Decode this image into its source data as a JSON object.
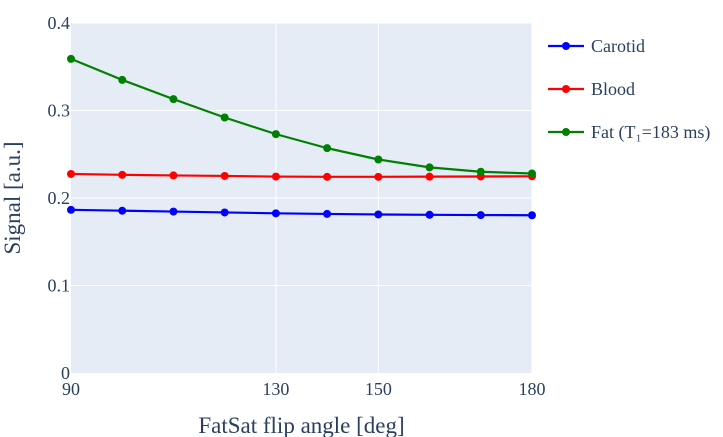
{
  "chart_data": {
    "type": "line",
    "xlabel": "FatSat flip angle [deg]",
    "ylabel": "Signal [a.u.]",
    "xlim": [
      90,
      180
    ],
    "ylim": [
      0,
      0.4
    ],
    "xticks": [
      90,
      130,
      150,
      180
    ],
    "yticks": [
      0,
      0.1,
      0.2,
      0.3,
      0.4
    ],
    "ytick_labels": [
      "0",
      "0.1",
      "0.2",
      "0.3",
      "0.4"
    ],
    "legend_position": "top-right, outside plot",
    "background": "#e5ecf6",
    "grid": true,
    "x": [
      90,
      100,
      110,
      120,
      130,
      140,
      150,
      160,
      170,
      180
    ],
    "series": [
      {
        "name": "Carotid",
        "color": "#0000ff",
        "values": [
          0.1865,
          0.1855,
          0.1845,
          0.1835,
          0.1825,
          0.1818,
          0.1812,
          0.1808,
          0.1805,
          0.1803
        ]
      },
      {
        "name": "Blood",
        "color": "#ff0000",
        "values": [
          0.2275,
          0.2265,
          0.2258,
          0.2252,
          0.2245,
          0.2242,
          0.2242,
          0.2244,
          0.2246,
          0.2248
        ]
      },
      {
        "name": "Fat (T₁=183 ms)",
        "color": "#008000",
        "values": [
          0.359,
          0.335,
          0.313,
          0.292,
          0.273,
          0.257,
          0.244,
          0.235,
          0.23,
          0.228
        ]
      }
    ]
  }
}
